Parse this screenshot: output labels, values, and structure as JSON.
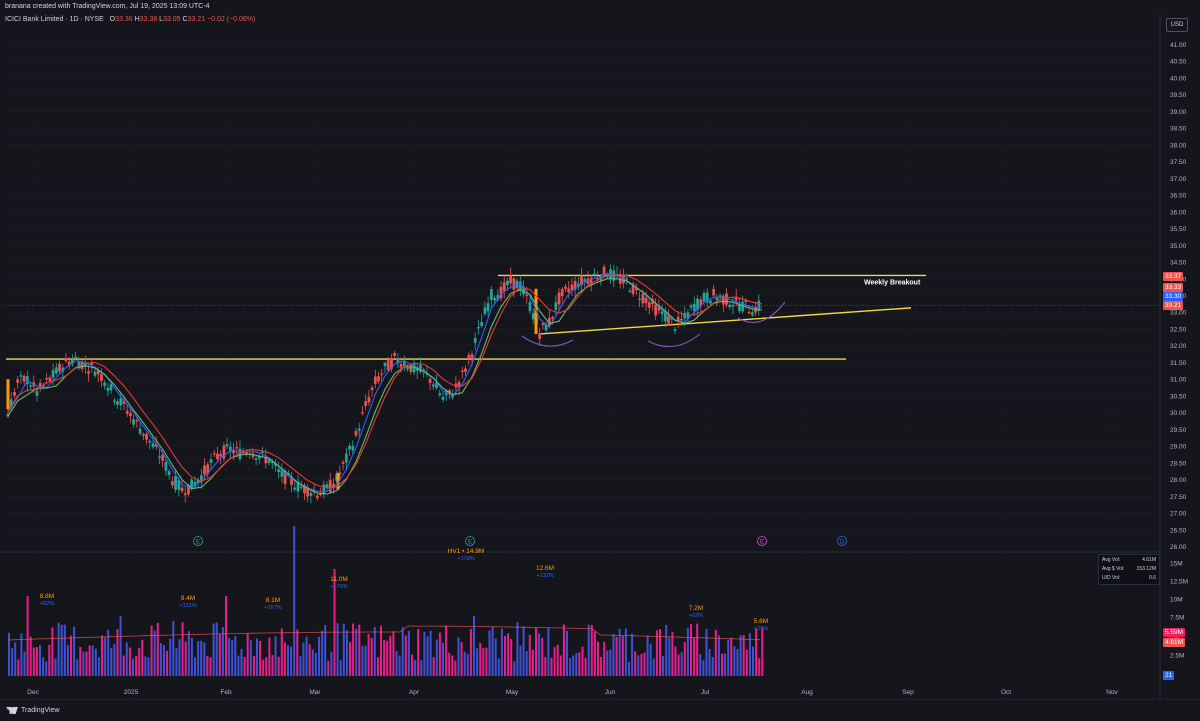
{
  "header": {
    "credit": "branana created with TradingView.com, Jul 19, 2025 13:09 UTC-4"
  },
  "legend": {
    "symbol": "ICICI Bank Limited · 1D · NYSE",
    "o_label": "O",
    "o": "33.36",
    "h_label": "H",
    "h": "33.38",
    "l_label": "L",
    "l": "33.05",
    "c_label": "C",
    "c": "33.21",
    "change": "−0.02 (−0.06%)"
  },
  "currency_button": "USD",
  "price_badges": {
    "b1": "33.37",
    "b2": "33.33",
    "b3": "33.30",
    "b4": "33.21"
  },
  "volume_badges": {
    "v1": "5.59M",
    "v2": "4.61M"
  },
  "bottom_badge": "21",
  "annotation": {
    "weekly_breakout": "Weekly Breakout"
  },
  "volume_labels": [
    {
      "text": "8.8M",
      "pct": "+52%"
    },
    {
      "text": "9.4M",
      "pct": "+131%"
    },
    {
      "text": "8.1M",
      "pct": "+167%"
    },
    {
      "text": "11.0M",
      "pct": "+179%"
    },
    {
      "text": "HV1 • 14.9M",
      "pct": "+178%"
    },
    {
      "text": "12.6M",
      "pct": "+132%"
    },
    {
      "text": "7.2M",
      "pct": "+62%"
    },
    {
      "text": "5.6M",
      "pct": "+21%"
    }
  ],
  "stats": {
    "avg_vol_label": "Avg Vol:",
    "avg_vol": "4.61M",
    "avg_dollar_vol_label": "Avg $ Vol:",
    "avg_dollar_vol": "153.12M",
    "ud_vol_label": "U/D Vol:",
    "ud_vol": "0.6"
  },
  "earnings_markers": [
    "E",
    "E",
    "E",
    "D"
  ],
  "footer": {
    "brand": "TradingView"
  },
  "colors": {
    "up": "#26a69a",
    "down": "#ef5350",
    "ma_blue": "#2962ff",
    "ma_green": "#66bb6a",
    "ma_red": "#e53935",
    "line_yellow": "#f5d742",
    "vol_blue": "#3f51d8",
    "vol_pink": "#e91e8c",
    "arc": "#7e57c2"
  },
  "chart_data": {
    "type": "candlestick",
    "price_axis": {
      "min": 26.0,
      "max": 41.0,
      "ticks": [
        "41.00",
        "40.50",
        "40.00",
        "39.50",
        "39.00",
        "38.50",
        "38.00",
        "37.50",
        "37.00",
        "36.50",
        "36.00",
        "35.50",
        "35.00",
        "34.50",
        "34.00",
        "33.50",
        "33.00",
        "32.50",
        "32.00",
        "31.50",
        "31.00",
        "30.50",
        "30.00",
        "29.50",
        "29.00",
        "28.50",
        "28.00",
        "27.50",
        "27.00",
        "26.50",
        "26.00"
      ]
    },
    "volume_axis": {
      "ticks": [
        "15M",
        "12.5M",
        "10M",
        "7.5M",
        "5M",
        "2.5M"
      ]
    },
    "x_ticks": [
      "Dec",
      "2025",
      "Feb",
      "Mar",
      "Apr",
      "May",
      "Jun",
      "Jul",
      "Aug",
      "Sep",
      "Oct",
      "Nov"
    ],
    "close_path": [
      30.0,
      30.9,
      31.0,
      30.6,
      30.9,
      31.2,
      31.5,
      31.6,
      31.4,
      31.3,
      31.0,
      30.5,
      30.2,
      29.8,
      29.4,
      29.0,
      28.6,
      28.0,
      27.7,
      27.8,
      28.1,
      28.5,
      28.8,
      28.9,
      28.8,
      28.9,
      28.7,
      28.6,
      28.2,
      28.0,
      27.8,
      27.7,
      27.6,
      27.7,
      28.0,
      28.6,
      29.3,
      30.2,
      30.9,
      31.3,
      31.6,
      31.5,
      31.3,
      31.2,
      30.9,
      30.4,
      30.6,
      31.1,
      31.8,
      32.7,
      33.5,
      33.6,
      33.9,
      33.8,
      33.2,
      32.4,
      32.7,
      33.4,
      33.7,
      33.9,
      34.0,
      34.1,
      34.2,
      34.0,
      33.9,
      33.6,
      33.4,
      33.1,
      32.9,
      32.6,
      32.8,
      33.2,
      33.4,
      33.5,
      33.4,
      33.3,
      33.2,
      33.1,
      33.2
    ],
    "horizontal_levels": [
      31.6,
      34.1
    ],
    "trendline": {
      "from_price": 32.35,
      "to_price": 33.13
    },
    "current_price": 33.21
  }
}
